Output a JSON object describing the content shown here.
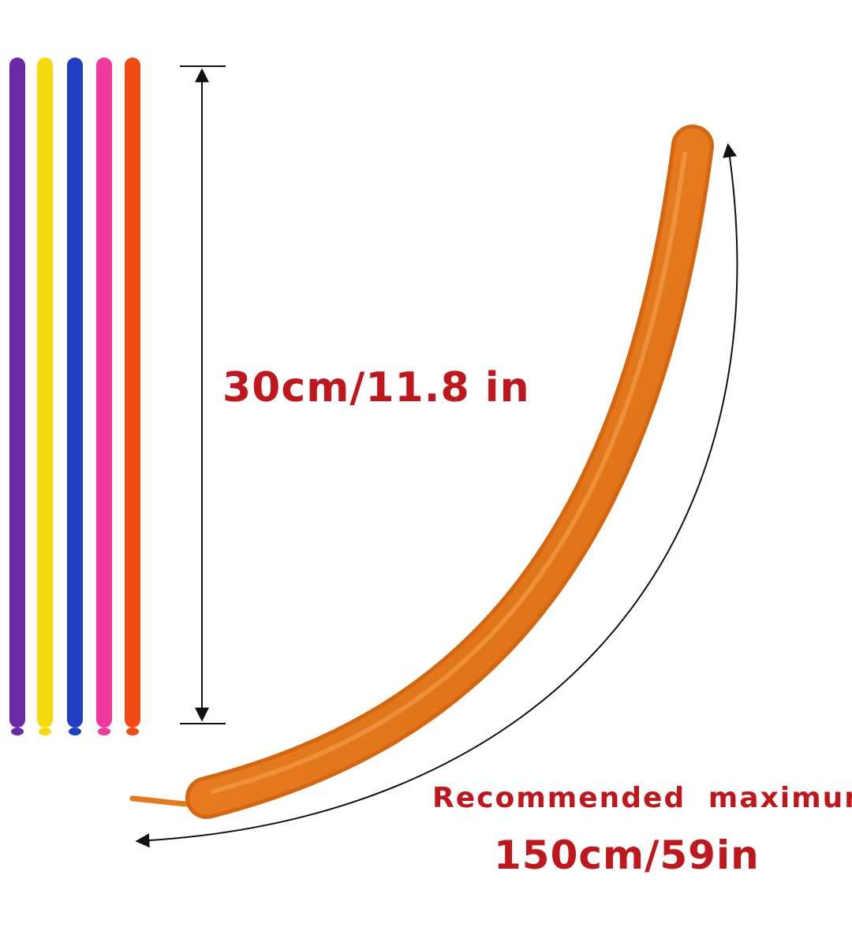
{
  "labels": {
    "short_length": "30cm/11.8 in",
    "recommended": "Recommended maximum",
    "max_length": "150cm/59in"
  },
  "colors": {
    "text": "#c0171d",
    "balloons": [
      "#6a2aa8",
      "#f6da0b",
      "#1f3ec4",
      "#f2389e",
      "#f24a12"
    ],
    "inflated": "#e5791c",
    "lines": "#111111"
  }
}
